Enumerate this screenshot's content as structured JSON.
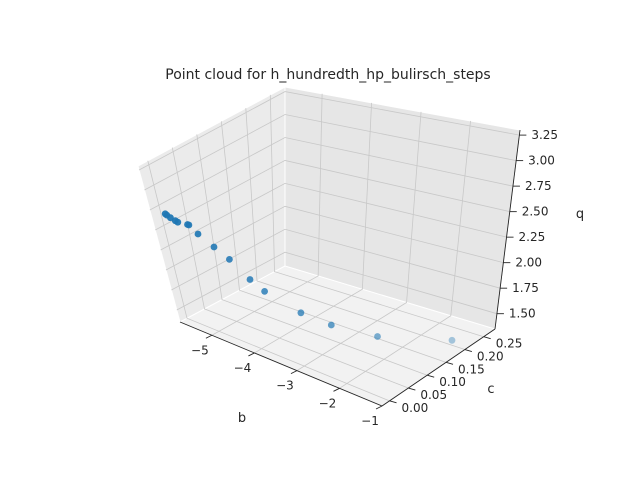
{
  "chart_data": {
    "type": "scatter",
    "projection": "3d",
    "title": "Point cloud for h_hundredth_hp_bulirsch_steps",
    "xlabel": "b",
    "ylabel": "c",
    "zlabel": "q",
    "xlim": [
      -5.75,
      -1.0
    ],
    "ylim": [
      -0.02,
      0.28
    ],
    "zlim": [
      1.35,
      3.3
    ],
    "xticks": [
      -5,
      -4,
      -3,
      -2,
      -1
    ],
    "xtick_labels": [
      "−5",
      "−4",
      "−3",
      "−2",
      "−1"
    ],
    "yticks": [
      0.0,
      0.05,
      0.1,
      0.15,
      0.2,
      0.25
    ],
    "ytick_labels": [
      "0.00",
      "0.05",
      "0.10",
      "0.15",
      "0.20",
      "0.25"
    ],
    "zticks": [
      1.5,
      1.75,
      2.0,
      2.25,
      2.5,
      2.75,
      3.0,
      3.25
    ],
    "ztick_labels": [
      "1.50",
      "1.75",
      "2.00",
      "2.25",
      "2.50",
      "2.75",
      "3.00",
      "3.25"
    ],
    "grid": true,
    "marker_color": "#1f77b4",
    "points": [
      {
        "b": -5.65,
        "c": 0.0,
        "q": 2.66
      },
      {
        "b": -5.62,
        "c": 0.0,
        "q": 2.65
      },
      {
        "b": -5.55,
        "c": 0.0,
        "q": 2.63
      },
      {
        "b": -5.45,
        "c": 0.0,
        "q": 2.61
      },
      {
        "b": -5.4,
        "c": 0.0,
        "q": 2.6
      },
      {
        "b": -5.3,
        "c": 0.01,
        "q": 2.56
      },
      {
        "b": -5.27,
        "c": 0.01,
        "q": 2.56
      },
      {
        "b": -5.1,
        "c": 0.01,
        "q": 2.48
      },
      {
        "b": -4.9,
        "c": 0.02,
        "q": 2.33
      },
      {
        "b": -4.7,
        "c": 0.03,
        "q": 2.19
      },
      {
        "b": -4.4,
        "c": 0.04,
        "q": 1.98
      },
      {
        "b": -4.2,
        "c": 0.05,
        "q": 1.85
      },
      {
        "b": -3.6,
        "c": 0.07,
        "q": 1.66
      },
      {
        "b": -3.1,
        "c": 0.09,
        "q": 1.56
      },
      {
        "b": -2.4,
        "c": 0.13,
        "q": 1.45
      },
      {
        "b": -1.3,
        "c": 0.2,
        "q": 1.4
      }
    ]
  }
}
